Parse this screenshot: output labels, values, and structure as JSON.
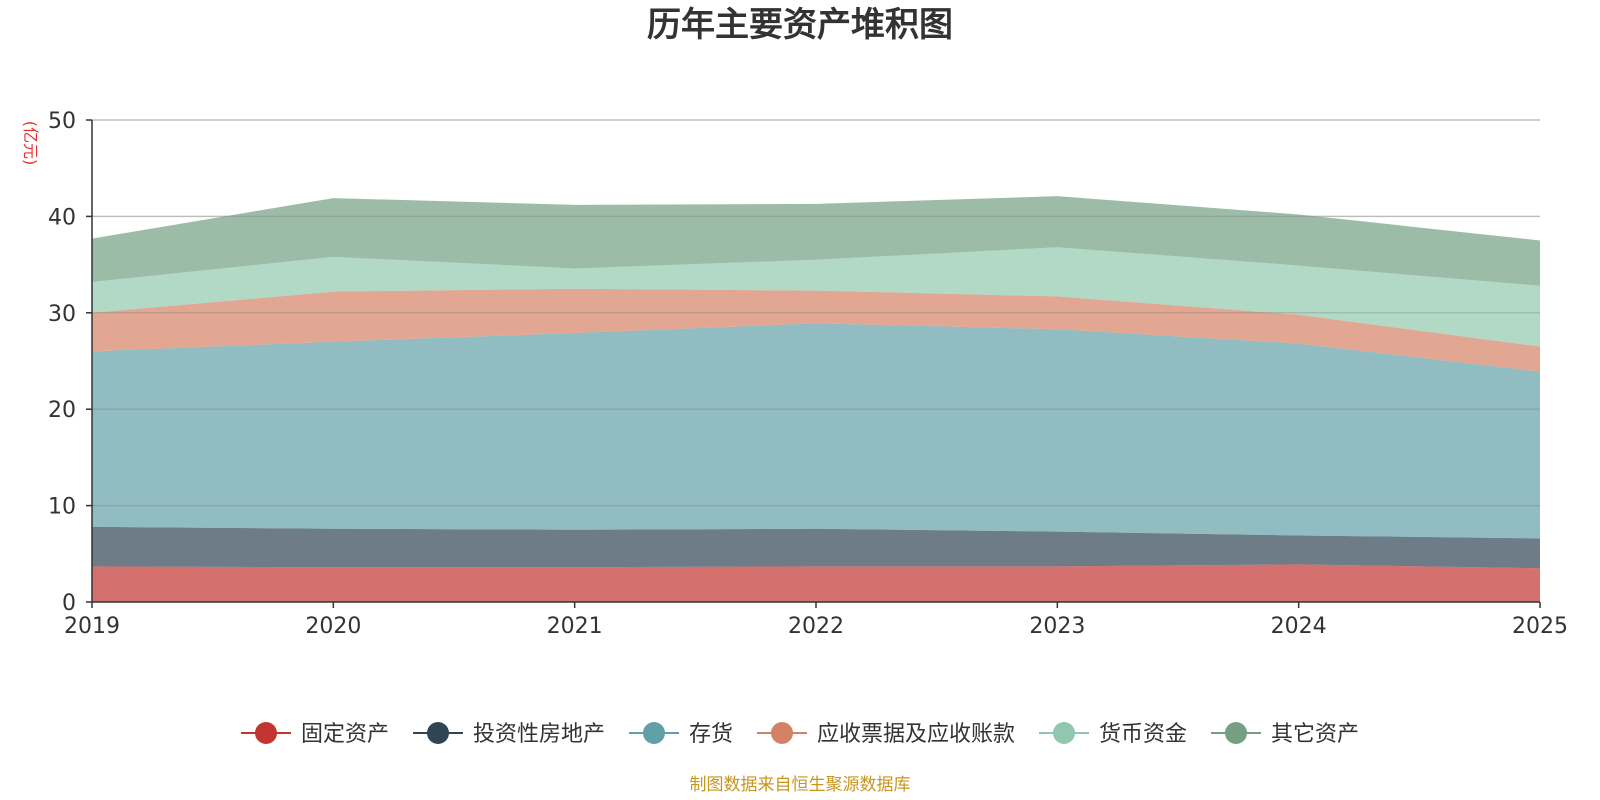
{
  "chart_data": {
    "type": "area",
    "stacked": true,
    "title": "历年主要资产堆积图",
    "ylabel": "(亿元)",
    "xlabel": "",
    "categories": [
      "2019",
      "2020",
      "2021",
      "2022",
      "2023",
      "2024",
      "2025"
    ],
    "ylim": [
      0,
      50
    ],
    "yticks": [
      "0",
      "10",
      "20",
      "30",
      "40",
      "50"
    ],
    "grid": true,
    "legend_position": "bottom-center",
    "series": [
      {
        "name": "固定资产",
        "color": "#c23531",
        "values": [
          3.7,
          3.6,
          3.6,
          3.7,
          3.7,
          3.9,
          3.5
        ]
      },
      {
        "name": "投资性房地产",
        "color": "#2f4554",
        "values": [
          4.1,
          4.0,
          3.9,
          3.9,
          3.6,
          3.0,
          3.1
        ]
      },
      {
        "name": "存货",
        "color": "#61a0a8",
        "values": [
          18.2,
          19.4,
          20.4,
          21.3,
          21.0,
          19.9,
          17.3
        ]
      },
      {
        "name": "应收票据及应收账款",
        "color": "#d48265",
        "values": [
          4.0,
          5.2,
          4.6,
          3.4,
          3.4,
          3.0,
          2.6
        ]
      },
      {
        "name": "货币资金",
        "color": "#91c7ae",
        "values": [
          3.2,
          3.6,
          2.1,
          3.2,
          5.1,
          5.1,
          6.3
        ]
      },
      {
        "name": "其它资产",
        "color": "#749f83",
        "values": [
          4.5,
          6.1,
          6.6,
          5.8,
          5.3,
          5.3,
          4.7
        ]
      }
    ],
    "source": "制图数据来自恒生聚源数据库",
    "source_color": "#c8961e",
    "unit_color": "#e63232"
  }
}
